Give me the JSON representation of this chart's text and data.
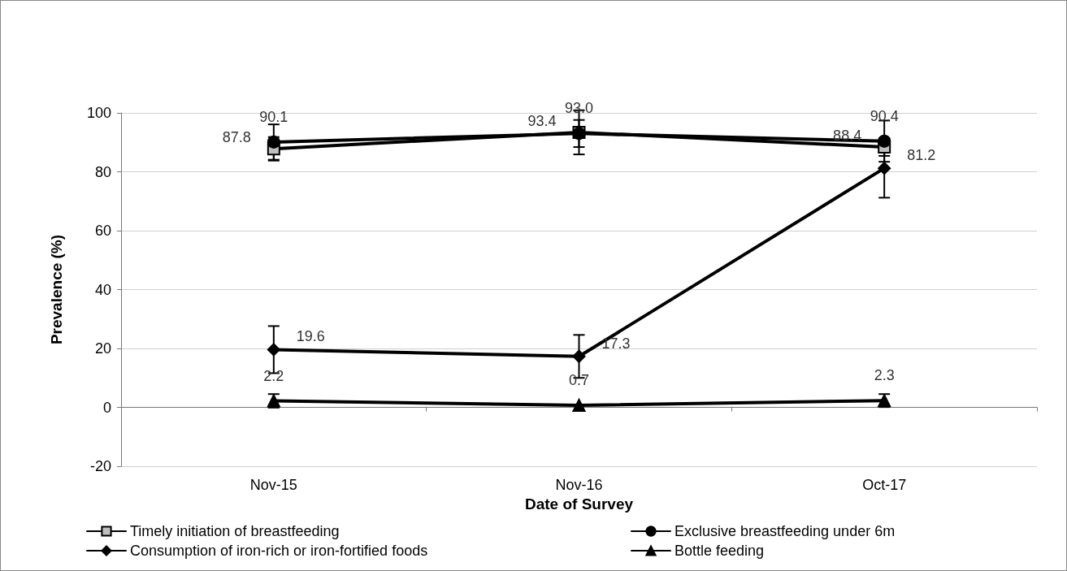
{
  "chart_data": {
    "type": "line",
    "xlabel": "Date of Survey",
    "ylabel": "Prevalence (%)",
    "categories": [
      "Nov-15",
      "Nov-16",
      "Oct-17"
    ],
    "series": [
      {
        "name": "Timely initiation of breastfeeding",
        "color": "#c0c0c0",
        "marker": "square",
        "values": [
          87.8,
          93.4,
          88.4
        ],
        "errors": [
          4,
          7.5,
          3
        ],
        "value_labels": [
          "87.8",
          "93.4",
          "88.4"
        ]
      },
      {
        "name": "Exclusive breastfeeding under 6m",
        "color": "#000000",
        "marker": "circle",
        "values": [
          90.1,
          93.0,
          90.4
        ],
        "errors": [
          6,
          4.6,
          7
        ],
        "value_labels": [
          "90.1",
          "93.0",
          "90.4"
        ]
      },
      {
        "name": "Consumption of iron-rich or iron-fortified foods",
        "color": "#000000",
        "marker": "diamond",
        "values": [
          19.6,
          17.3,
          81.2
        ],
        "errors": [
          8,
          7.3,
          10
        ],
        "value_labels": [
          "19.6",
          "17.3",
          "81.2"
        ]
      },
      {
        "name": "Bottle feeding",
        "color": "#000000",
        "marker": "triangle",
        "values": [
          2.2,
          0.7,
          2.3
        ],
        "errors": [
          2.3,
          null,
          2.2
        ],
        "value_labels": [
          "2.2",
          "0.7",
          "2.3"
        ]
      }
    ],
    "ylim": [
      -20,
      100
    ],
    "yticks": [
      -20,
      0,
      20,
      40,
      60,
      80,
      100
    ],
    "grid": "y",
    "legend": "bottom"
  }
}
